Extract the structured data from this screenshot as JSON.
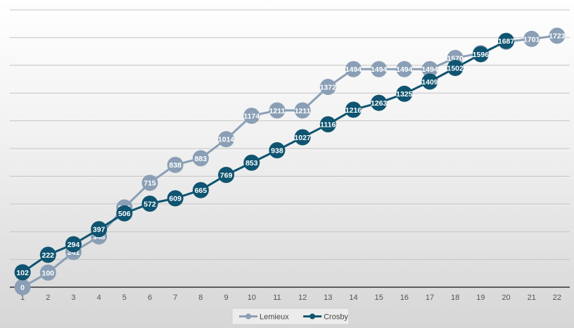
{
  "chart_data": {
    "type": "line",
    "title": "",
    "xlabel": "",
    "ylabel": "",
    "x": [
      "1",
      "2",
      "3",
      "4",
      "5",
      "6",
      "7",
      "8",
      "9",
      "10",
      "11",
      "12",
      "13",
      "14",
      "15",
      "16",
      "17",
      "18",
      "19",
      "20",
      "21",
      "22"
    ],
    "ylim": [
      0,
      1900
    ],
    "grid": true,
    "legend_position": "bottom",
    "series": [
      {
        "name": "Lemieux",
        "color": "#8a9fb5",
        "values": [
          0,
          100,
          241,
          348,
          546,
          715,
          838,
          883,
          1014,
          1174,
          1211,
          1211,
          1372,
          1494,
          1494,
          1494,
          1494,
          1570,
          1603,
          1682,
          1701,
          1723
        ]
      },
      {
        "name": "Crosby",
        "color": "#0f5470",
        "values": [
          102,
          222,
          294,
          397,
          506,
          572,
          609,
          665,
          769,
          853,
          938,
          1027,
          1116,
          1216,
          1263,
          1325,
          1409,
          1502,
          1596,
          1687,
          null,
          null
        ]
      }
    ]
  }
}
